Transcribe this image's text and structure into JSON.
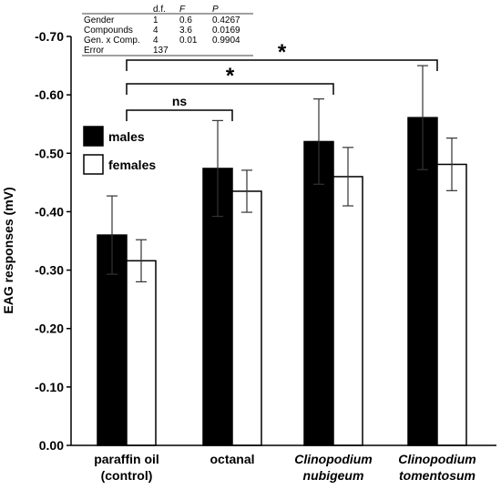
{
  "chart_data": {
    "type": "bar",
    "ylabel": "EAG responses (mV)",
    "ylim": [
      0,
      -0.7
    ],
    "yticks": [
      "0.00",
      "-0.10",
      "-0.20",
      "-0.30",
      "-0.40",
      "-0.50",
      "-0.60",
      "-0.70"
    ],
    "categories": [
      {
        "lines": [
          "paraffin oil",
          "(control)"
        ],
        "italic": false
      },
      {
        "lines": [
          "octanal"
        ],
        "italic": false
      },
      {
        "lines": [
          "Clinopodium",
          "nubigeum"
        ],
        "italic": true
      },
      {
        "lines": [
          "Clinopodium",
          "tomentosum"
        ],
        "italic": true
      }
    ],
    "series": [
      {
        "name": "males",
        "color": "#000000",
        "values": [
          -0.36,
          -0.474,
          -0.52,
          -0.561
        ],
        "errors": [
          0.067,
          0.082,
          0.073,
          0.089
        ]
      },
      {
        "name": "females",
        "color": "#ffffff",
        "values": [
          -0.316,
          -0.435,
          -0.46,
          -0.481
        ],
        "errors": [
          0.036,
          0.036,
          0.05,
          0.045
        ]
      }
    ],
    "legend_position": "upper-left",
    "comparisons": [
      {
        "from": 0,
        "to": 1,
        "label": "ns",
        "level": -0.597
      },
      {
        "from": 0,
        "to": 2,
        "label": "*",
        "level": -0.657
      },
      {
        "from": 0,
        "to": 3,
        "label": "*",
        "level": -0.69
      }
    ],
    "stats_table": {
      "headers": [
        "",
        "d.f.",
        "F",
        "P"
      ],
      "rows": [
        [
          "Gender",
          "1",
          "0.6",
          "0.4267"
        ],
        [
          "Compounds",
          "4",
          "3.6",
          "0.0169"
        ],
        [
          "Gen. x Comp.",
          "4",
          "0.01",
          "0.9904"
        ],
        [
          "Error",
          "137",
          "",
          ""
        ]
      ]
    }
  }
}
